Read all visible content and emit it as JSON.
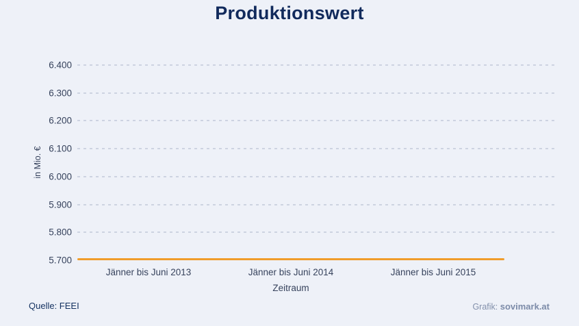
{
  "title": "Produktionswert",
  "chart_data": {
    "type": "line",
    "title": "Produktionswert",
    "categories": [
      "Jänner bis Juni 2013",
      "Jänner bis Juni 2014",
      "Jänner bis Juni 2015"
    ],
    "series": [
      {
        "name": "Produktionswert",
        "values": [
          5700,
          5700,
          5700
        ]
      }
    ],
    "xlabel": "Zeitraum",
    "ylabel": "in Mio. €",
    "ylim": [
      5700,
      6400
    ],
    "ytick_step": 100,
    "ytick_labels": [
      "6.400",
      "6.300",
      "6.200",
      "6.100",
      "6.000",
      "5.900",
      "5.800",
      "5.700"
    ],
    "grid": "horizontal-dashed",
    "legend": "none",
    "line_color": "#f09d2b",
    "background_color": "#eef1f8"
  },
  "footer": {
    "source_label": "Quelle: FEEI",
    "credit_label": "Grafik: ",
    "credit_brand": "sovimark.at"
  },
  "colors": {
    "title": "#112a5c",
    "axis_text": "#36425c",
    "gridline": "#b2bace",
    "line": "#f09d2b",
    "source_text": "#12305f",
    "credit_text": "#8290ab"
  }
}
